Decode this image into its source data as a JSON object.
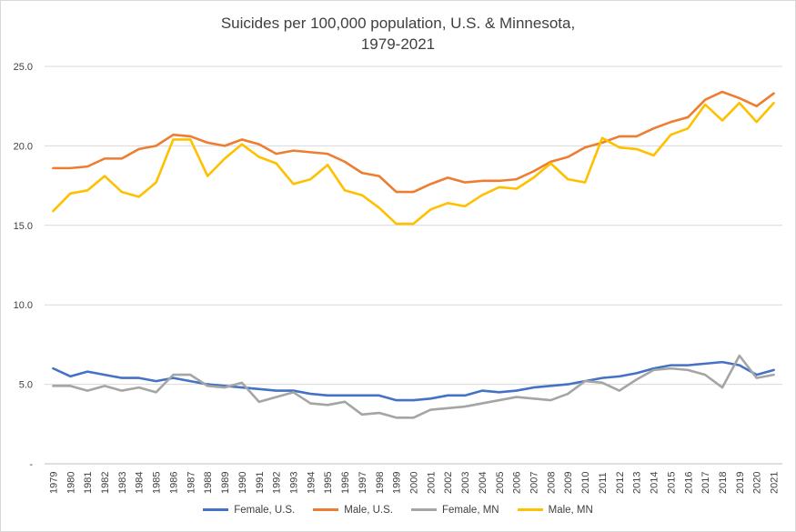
{
  "chart_data": {
    "type": "line",
    "title_line1": "Suicides per 100,000 population, U.S. & Minnesota,",
    "title_line2": "1979-2021",
    "x": [
      "1979",
      "1980",
      "1981",
      "1982",
      "1983",
      "1984",
      "1985",
      "1986",
      "1987",
      "1988",
      "1989",
      "1990",
      "1991",
      "1992",
      "1993",
      "1994",
      "1995",
      "1996",
      "1997",
      "1998",
      "1999",
      "2000",
      "2001",
      "2002",
      "2003",
      "2004",
      "2005",
      "2006",
      "2007",
      "2008",
      "2009",
      "2010",
      "2011",
      "2012",
      "2013",
      "2014",
      "2015",
      "2016",
      "2017",
      "2018",
      "2019",
      "2020",
      "2021"
    ],
    "ylim": [
      0,
      25
    ],
    "yticks": [
      "-",
      "5.0",
      "10.0",
      "15.0",
      "20.0",
      "25.0"
    ],
    "grid": true,
    "legend_position": "bottom",
    "series": [
      {
        "name": "Female, U.S.",
        "color": "#4472C4",
        "values": [
          6.0,
          5.5,
          5.8,
          5.6,
          5.4,
          5.4,
          5.2,
          5.4,
          5.2,
          5.0,
          4.9,
          4.8,
          4.7,
          4.6,
          4.6,
          4.4,
          4.3,
          4.3,
          4.3,
          4.3,
          4.0,
          4.0,
          4.1,
          4.3,
          4.3,
          4.6,
          4.5,
          4.6,
          4.8,
          4.9,
          5.0,
          5.2,
          5.4,
          5.5,
          5.7,
          6.0,
          6.2,
          6.2,
          6.3,
          6.4,
          6.2,
          5.6,
          5.9
        ]
      },
      {
        "name": "Male, U.S.",
        "color": "#ED7D31",
        "values": [
          18.6,
          18.6,
          18.7,
          19.2,
          19.2,
          19.8,
          20.0,
          20.7,
          20.6,
          20.2,
          20.0,
          20.4,
          20.1,
          19.5,
          19.7,
          19.6,
          19.5,
          19.0,
          18.3,
          18.1,
          17.1,
          17.1,
          17.6,
          18.0,
          17.7,
          17.8,
          17.8,
          17.9,
          18.4,
          19.0,
          19.3,
          19.9,
          20.2,
          20.6,
          20.6,
          21.1,
          21.5,
          21.8,
          22.9,
          23.4,
          23.0,
          22.5,
          23.3
        ]
      },
      {
        "name": "Female, MN",
        "color": "#A5A5A5",
        "values": [
          4.9,
          4.9,
          4.6,
          4.9,
          4.6,
          4.8,
          4.5,
          5.6,
          5.6,
          4.9,
          4.8,
          5.1,
          3.9,
          4.2,
          4.5,
          3.8,
          3.7,
          3.9,
          3.1,
          3.2,
          2.9,
          2.9,
          3.4,
          3.5,
          3.6,
          3.8,
          4.0,
          4.2,
          4.1,
          4.0,
          4.4,
          5.2,
          5.1,
          4.6,
          5.3,
          5.9,
          6.0,
          5.9,
          5.6,
          4.8,
          6.8,
          5.4,
          5.6
        ]
      },
      {
        "name": "Male, MN",
        "color": "#FFC000",
        "values": [
          15.9,
          17.0,
          17.2,
          18.1,
          17.1,
          16.8,
          17.7,
          20.4,
          20.4,
          18.1,
          19.2,
          20.1,
          19.3,
          18.9,
          17.6,
          17.9,
          18.8,
          17.2,
          16.9,
          16.1,
          15.1,
          15.1,
          16.0,
          16.4,
          16.2,
          16.9,
          17.4,
          17.3,
          18.0,
          18.9,
          17.9,
          17.7,
          20.5,
          19.9,
          19.8,
          19.4,
          20.7,
          21.1,
          22.6,
          21.6,
          22.7,
          21.5,
          22.7
        ]
      }
    ]
  }
}
